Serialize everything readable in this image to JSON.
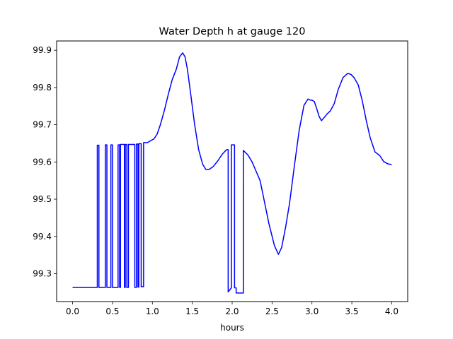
{
  "chart_data": {
    "type": "line",
    "title": "Water Depth h at gauge 120",
    "xlabel": "hours",
    "ylabel": "",
    "xlim": [
      -0.2,
      4.2
    ],
    "ylim": [
      99.225,
      99.925
    ],
    "xticks": [
      0.0,
      0.5,
      1.0,
      1.5,
      2.0,
      2.5,
      3.0,
      3.5,
      4.0
    ],
    "xtick_labels": [
      "0.0",
      "0.5",
      "1.0",
      "1.5",
      "2.0",
      "2.5",
      "3.0",
      "3.5",
      "4.0"
    ],
    "yticks": [
      99.3,
      99.4,
      99.5,
      99.6,
      99.7,
      99.8,
      99.9
    ],
    "ytick_labels": [
      "99.3",
      "99.4",
      "99.5",
      "99.6",
      "99.7",
      "99.8",
      "99.9"
    ],
    "grid": false,
    "series": [
      {
        "color": "#0000ff",
        "x": [
          0.0,
          0.31,
          0.31,
          0.33,
          0.33,
          0.41,
          0.41,
          0.43,
          0.43,
          0.48,
          0.48,
          0.5,
          0.5,
          0.57,
          0.57,
          0.59,
          0.59,
          0.6,
          0.6,
          0.65,
          0.65,
          0.66,
          0.66,
          0.68,
          0.68,
          0.7,
          0.7,
          0.78,
          0.78,
          0.8,
          0.8,
          0.82,
          0.82,
          0.83,
          0.83,
          0.86,
          0.86,
          0.89,
          0.89,
          0.94,
          0.94,
          0.97,
          1.02,
          1.06,
          1.1,
          1.15,
          1.2,
          1.25,
          1.3,
          1.34,
          1.38,
          1.41,
          1.44,
          1.48,
          1.53,
          1.58,
          1.63,
          1.67,
          1.71,
          1.76,
          1.82,
          1.88,
          1.93,
          1.95,
          1.95,
          1.99,
          1.99,
          2.03,
          2.03,
          2.05,
          2.05,
          2.14,
          2.14,
          2.2,
          2.25,
          2.3,
          2.35,
          2.4,
          2.46,
          2.53,
          2.58,
          2.62,
          2.67,
          2.72,
          2.78,
          2.84,
          2.9,
          2.95,
          2.98,
          3.0,
          3.03,
          3.06,
          3.09,
          3.12,
          3.16,
          3.19,
          3.23,
          3.28,
          3.33,
          3.39,
          3.45,
          3.49,
          3.53,
          3.58,
          3.63,
          3.68,
          3.73,
          3.79,
          3.85,
          3.9,
          3.95,
          4.0
        ],
        "y": [
          99.263,
          99.263,
          99.645,
          99.645,
          99.263,
          99.263,
          99.646,
          99.646,
          99.263,
          99.263,
          99.646,
          99.646,
          99.263,
          99.263,
          99.646,
          99.646,
          99.263,
          99.263,
          99.647,
          99.647,
          99.263,
          99.263,
          99.647,
          99.647,
          99.263,
          99.263,
          99.647,
          99.647,
          99.263,
          99.263,
          99.648,
          99.648,
          99.264,
          99.264,
          99.649,
          99.649,
          99.265,
          99.265,
          99.652,
          99.652,
          99.652,
          99.656,
          99.662,
          99.675,
          99.7,
          99.738,
          99.782,
          99.822,
          99.849,
          99.882,
          99.893,
          99.882,
          99.848,
          99.783,
          99.7,
          99.633,
          99.594,
          99.58,
          99.58,
          99.587,
          99.603,
          99.622,
          99.633,
          99.633,
          99.251,
          99.262,
          99.646,
          99.646,
          99.262,
          99.262,
          99.248,
          99.248,
          99.631,
          99.618,
          99.6,
          99.575,
          99.55,
          99.498,
          99.435,
          99.375,
          99.352,
          99.37,
          99.425,
          99.49,
          99.59,
          99.685,
          99.752,
          99.769,
          99.766,
          99.766,
          99.762,
          99.743,
          99.722,
          99.711,
          99.721,
          99.729,
          99.737,
          99.757,
          99.795,
          99.827,
          99.838,
          99.835,
          99.826,
          99.807,
          99.765,
          99.712,
          99.665,
          99.627,
          99.617,
          99.601,
          99.595,
          99.593
        ]
      }
    ]
  }
}
